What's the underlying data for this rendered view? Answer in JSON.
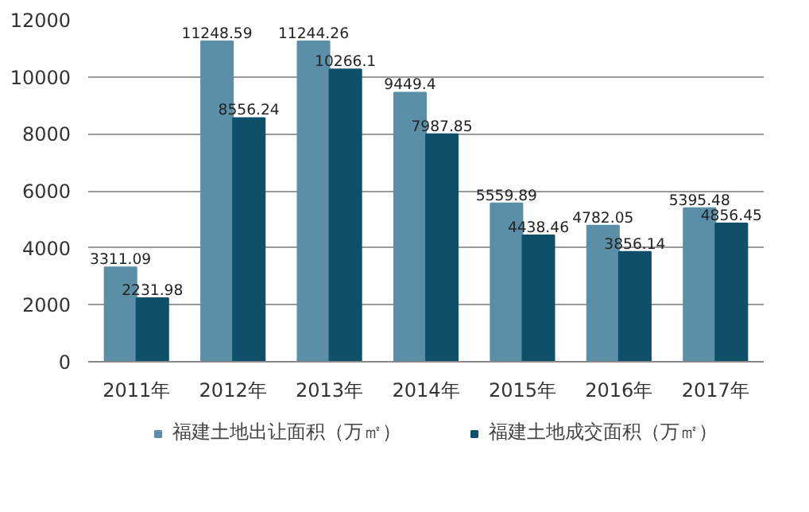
{
  "chart_data": {
    "type": "bar",
    "categories": [
      "2011年",
      "2012年",
      "2013年",
      "2014年",
      "2015年",
      "2016年",
      "2017年"
    ],
    "series": [
      {
        "name": "福建土地出让面积（万㎡）",
        "color": "#5b8fa8",
        "values": [
          3311.09,
          11248.59,
          11244.26,
          9449.4,
          5559.89,
          4782.05,
          5395.48
        ]
      },
      {
        "name": "福建土地成交面积（万㎡）",
        "color": "#0e5069",
        "values": [
          2231.98,
          8556.24,
          10266.1,
          7987.85,
          4438.46,
          3856.14,
          4856.45
        ]
      }
    ],
    "ylim": [
      0,
      12000
    ],
    "yticks": [
      0,
      2000,
      4000,
      6000,
      8000,
      10000,
      12000
    ],
    "grid": "y",
    "legend": "bottom",
    "data_labels": true
  }
}
